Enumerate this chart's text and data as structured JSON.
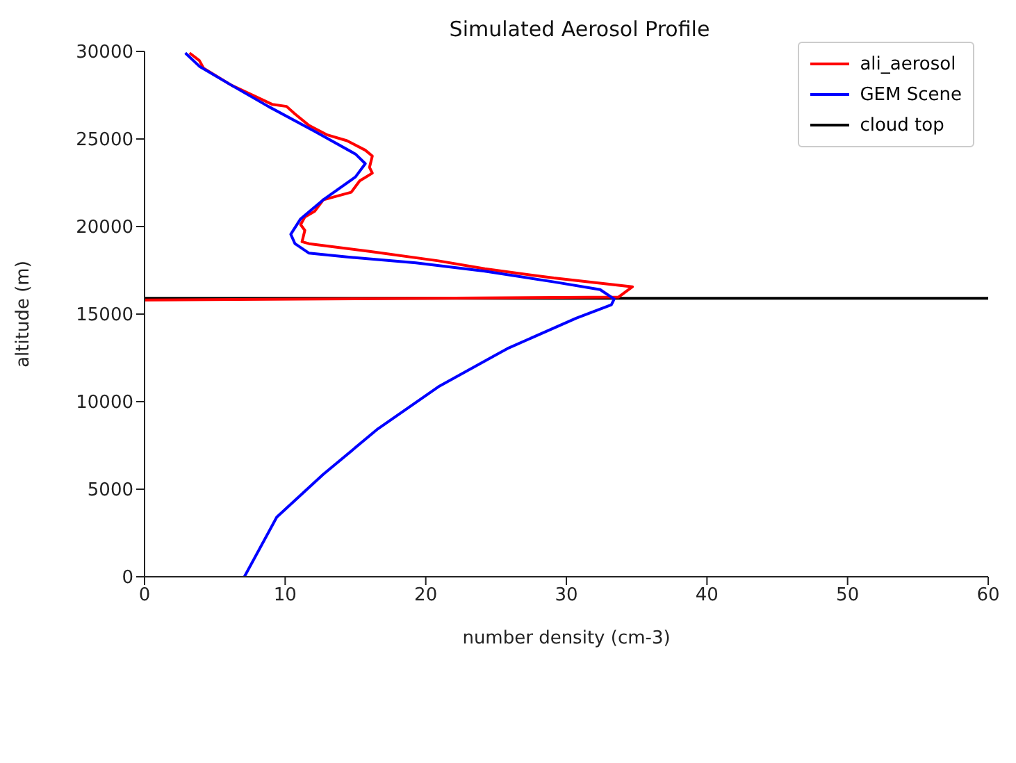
{
  "chart_data": {
    "type": "line",
    "title": "Simulated Aerosol Profile",
    "xlabel": "number density (cm-3)",
    "ylabel": "altitude (m)",
    "xlim": [
      0,
      60
    ],
    "xticks": [
      0,
      10,
      20,
      30,
      40,
      50,
      60
    ],
    "ylim": [
      0,
      30000
    ],
    "yticks": [
      0,
      5000,
      10000,
      15000,
      20000,
      25000,
      30000
    ],
    "legend": "top right",
    "marker": "none",
    "line_style": "solid",
    "series": [
      {
        "name": "ali_aerosol",
        "color": "#ff0000",
        "x": [
          0,
          33.7,
          34.7,
          29.1,
          24.2,
          20.9,
          16.0,
          11.7,
          11.2,
          11.4,
          11.1,
          11.4,
          12.1,
          12.7,
          14.7,
          15.3,
          16.2,
          16.0,
          16.2,
          15.7,
          14.4,
          13.0,
          11.7,
          10.7,
          10.1,
          9.1,
          6.2,
          4.2,
          3.9,
          3.2
        ],
        "values": [
          15800,
          15970,
          16560,
          17060,
          17590,
          18040,
          18580,
          19020,
          19130,
          19780,
          20110,
          20540,
          20870,
          21520,
          21960,
          22610,
          23050,
          23380,
          24030,
          24360,
          24900,
          25230,
          25770,
          26430,
          26860,
          26970,
          28060,
          29040,
          29480,
          29910
        ]
      },
      {
        "name": "GEM Scene",
        "color": "#0000ff",
        "x": [
          7.1,
          9.4,
          12.7,
          16.6,
          20.9,
          25.8,
          30.7,
          33.2,
          33.4,
          32.4,
          29.1,
          24.2,
          19.3,
          14.4,
          11.7,
          10.7,
          10.4,
          11.1,
          12.7,
          15.0,
          15.7,
          15.0,
          12.1,
          8.8,
          6.2,
          3.9,
          2.9
        ],
        "values": [
          0,
          3400,
          5840,
          8450,
          10850,
          13030,
          14770,
          15530,
          15860,
          16400,
          16840,
          17450,
          17930,
          18260,
          18480,
          19020,
          19560,
          20440,
          21520,
          22830,
          23590,
          24140,
          25440,
          26860,
          28060,
          29150,
          29910
        ]
      }
    ],
    "ref_lines": [
      {
        "axis": "y",
        "value": 15900,
        "label": "cloud top",
        "color": "#000000"
      }
    ]
  }
}
